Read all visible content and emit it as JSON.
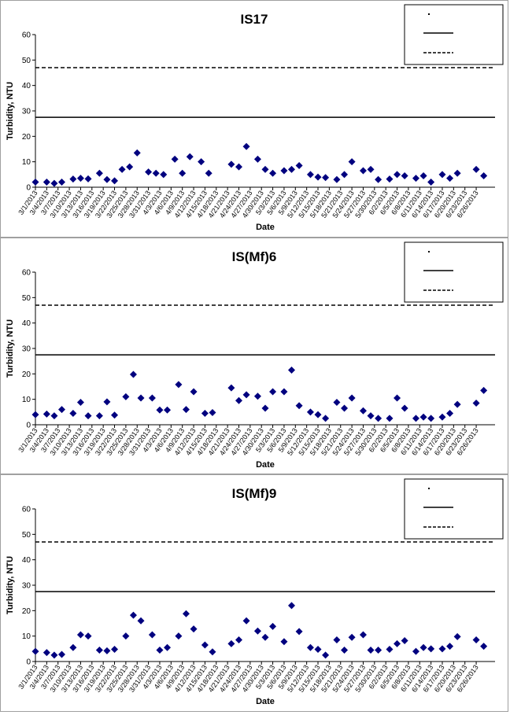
{
  "x_labels": [
    "3/1/2013",
    "3/4/2013",
    "3/7/2013",
    "3/10/2013",
    "3/13/2013",
    "3/16/2013",
    "3/19/2013",
    "3/22/2013",
    "3/25/2013",
    "3/28/2013",
    "3/31/2013",
    "4/3/2013",
    "4/6/2013",
    "4/9/2013",
    "4/12/2013",
    "4/15/2013",
    "4/18/2013",
    "4/21/2013",
    "4/24/2013",
    "4/27/2013",
    "4/30/2013",
    "5/3/2013",
    "5/6/2013",
    "5/9/2013",
    "5/12/2013",
    "5/15/2013",
    "5/18/2013",
    "5/21/2013",
    "5/24/2013",
    "5/27/2013",
    "5/30/2013",
    "6/2/2013",
    "6/5/2013",
    "6/8/2013",
    "6/11/2013",
    "6/14/2013",
    "6/17/2013",
    "6/20/2013",
    "6/23/2013",
    "6/26/2013"
  ],
  "colors": {
    "marker": "#00007f",
    "line": "#000000",
    "frame": "#a0a0a0"
  },
  "chart_data": [
    {
      "type": "scatter",
      "title": "IS17",
      "xlabel": "Date",
      "ylabel": "Turbidity, NTU",
      "ylim": [
        0,
        60
      ],
      "yticks": [
        0,
        10,
        20,
        30,
        40,
        50,
        60
      ],
      "xlim": [
        "3/1/2013",
        "7/1/2013"
      ],
      "legend": {
        "placement": "top-right"
      },
      "series": [
        {
          "marker": "diamond",
          "points": [
            [
              "3/1/2013",
              2.0
            ],
            [
              "3/4/2013",
              2.0
            ],
            [
              "3/6/2013",
              1.5
            ],
            [
              "3/8/2013",
              2.0
            ],
            [
              "3/11/2013",
              3.2
            ],
            [
              "3/13/2013",
              3.5
            ],
            [
              "3/15/2013",
              3.3
            ],
            [
              "3/18/2013",
              5.5
            ],
            [
              "3/20/2013",
              3.0
            ],
            [
              "3/22/2013",
              2.5
            ],
            [
              "3/24/2013",
              7.0
            ],
            [
              "3/26/2013",
              8.0
            ],
            [
              "3/28/2013",
              13.5
            ],
            [
              "3/31/2013",
              6.0
            ],
            [
              "4/2/2013",
              5.5
            ],
            [
              "4/4/2013",
              5.0
            ],
            [
              "4/7/2013",
              11.0
            ],
            [
              "4/9/2013",
              5.5
            ],
            [
              "4/11/2013",
              12.0
            ],
            [
              "4/14/2013",
              10.0
            ],
            [
              "4/16/2013",
              5.5
            ],
            [
              "4/22/2013",
              9.0
            ],
            [
              "4/24/2013",
              8.0
            ],
            [
              "4/26/2013",
              16.0
            ],
            [
              "4/29/2013",
              11.0
            ],
            [
              "5/1/2013",
              7.0
            ],
            [
              "5/3/2013",
              5.5
            ],
            [
              "5/6/2013",
              6.5
            ],
            [
              "5/8/2013",
              7.0
            ],
            [
              "5/10/2013",
              8.5
            ],
            [
              "5/13/2013",
              5.0
            ],
            [
              "5/15/2013",
              4.0
            ],
            [
              "5/17/2013",
              3.8
            ],
            [
              "5/20/2013",
              3.0
            ],
            [
              "5/22/2013",
              5.0
            ],
            [
              "5/24/2013",
              10.0
            ],
            [
              "5/27/2013",
              6.5
            ],
            [
              "5/29/2013",
              7.0
            ],
            [
              "5/31/2013",
              3.0
            ],
            [
              "6/3/2013",
              3.2
            ],
            [
              "6/5/2013",
              5.0
            ],
            [
              "6/7/2013",
              4.5
            ],
            [
              "6/10/2013",
              3.5
            ],
            [
              "6/12/2013",
              4.5
            ],
            [
              "6/14/2013",
              2.0
            ],
            [
              "6/17/2013",
              5.0
            ],
            [
              "6/19/2013",
              3.5
            ],
            [
              "6/21/2013",
              5.5
            ],
            [
              "6/26/2013",
              7.0
            ],
            [
              "6/28/2013",
              4.5
            ]
          ]
        }
      ],
      "reference_lines": [
        {
          "style": "solid",
          "y": 27.5
        },
        {
          "style": "dashed",
          "y": 47.0
        }
      ]
    },
    {
      "type": "scatter",
      "title": "IS(Mf)6",
      "xlabel": "Date",
      "ylabel": "Turbidity, NTU",
      "ylim": [
        0,
        60
      ],
      "yticks": [
        0,
        10,
        20,
        30,
        40,
        50,
        60
      ],
      "xlim": [
        "3/1/2013",
        "7/1/2013"
      ],
      "legend": {
        "placement": "top-right"
      },
      "series": [
        {
          "marker": "diamond",
          "points": [
            [
              "3/1/2013",
              4.0
            ],
            [
              "3/4/2013",
              4.2
            ],
            [
              "3/6/2013",
              3.5
            ],
            [
              "3/8/2013",
              6.0
            ],
            [
              "3/11/2013",
              4.5
            ],
            [
              "3/13/2013",
              8.8
            ],
            [
              "3/15/2013",
              3.5
            ],
            [
              "3/18/2013",
              3.5
            ],
            [
              "3/20/2013",
              9.0
            ],
            [
              "3/22/2013",
              3.8
            ],
            [
              "3/25/2013",
              11.0
            ],
            [
              "3/27/2013",
              19.8
            ],
            [
              "3/29/2013",
              10.5
            ],
            [
              "4/1/2013",
              10.5
            ],
            [
              "4/3/2013",
              5.8
            ],
            [
              "4/5/2013",
              5.8
            ],
            [
              "4/8/2013",
              15.8
            ],
            [
              "4/10/2013",
              6.0
            ],
            [
              "4/12/2013",
              13.0
            ],
            [
              "4/15/2013",
              4.5
            ],
            [
              "4/17/2013",
              4.8
            ],
            [
              "4/22/2013",
              14.5
            ],
            [
              "4/24/2013",
              9.5
            ],
            [
              "4/26/2013",
              11.8
            ],
            [
              "4/29/2013",
              11.2
            ],
            [
              "5/1/2013",
              6.5
            ],
            [
              "5/3/2013",
              13.0
            ],
            [
              "5/6/2013",
              13.0
            ],
            [
              "5/8/2013",
              21.5
            ],
            [
              "5/10/2013",
              7.5
            ],
            [
              "5/13/2013",
              5.0
            ],
            [
              "5/15/2013",
              4.0
            ],
            [
              "5/17/2013",
              2.5
            ],
            [
              "5/20/2013",
              8.8
            ],
            [
              "5/22/2013",
              6.5
            ],
            [
              "5/24/2013",
              10.5
            ],
            [
              "5/27/2013",
              5.5
            ],
            [
              "5/29/2013",
              3.5
            ],
            [
              "5/31/2013",
              2.5
            ],
            [
              "6/3/2013",
              2.5
            ],
            [
              "6/5/2013",
              10.5
            ],
            [
              "6/7/2013",
              6.5
            ],
            [
              "6/10/2013",
              2.5
            ],
            [
              "6/12/2013",
              3.0
            ],
            [
              "6/14/2013",
              2.5
            ],
            [
              "6/17/2013",
              3.0
            ],
            [
              "6/19/2013",
              4.5
            ],
            [
              "6/21/2013",
              8.0
            ],
            [
              "6/26/2013",
              8.5
            ],
            [
              "6/28/2013",
              13.5
            ]
          ]
        }
      ],
      "reference_lines": [
        {
          "style": "solid",
          "y": 27.5
        },
        {
          "style": "dashed",
          "y": 47.0
        }
      ]
    },
    {
      "type": "scatter",
      "title": "IS(Mf)9",
      "xlabel": "Date",
      "ylabel": "Turbidity, NTU",
      "ylim": [
        0,
        60
      ],
      "yticks": [
        0,
        10,
        20,
        30,
        40,
        50,
        60
      ],
      "xlim": [
        "3/1/2013",
        "7/1/2013"
      ],
      "legend": {
        "placement": "top-right"
      },
      "series": [
        {
          "marker": "diamond",
          "points": [
            [
              "3/1/2013",
              4.0
            ],
            [
              "3/4/2013",
              3.5
            ],
            [
              "3/6/2013",
              2.5
            ],
            [
              "3/8/2013",
              2.8
            ],
            [
              "3/11/2013",
              5.5
            ],
            [
              "3/13/2013",
              10.5
            ],
            [
              "3/15/2013",
              10.0
            ],
            [
              "3/18/2013",
              4.5
            ],
            [
              "3/20/2013",
              4.2
            ],
            [
              "3/22/2013",
              4.8
            ],
            [
              "3/25/2013",
              10.0
            ],
            [
              "3/27/2013",
              18.2
            ],
            [
              "3/29/2013",
              16.0
            ],
            [
              "4/1/2013",
              10.5
            ],
            [
              "4/3/2013",
              4.5
            ],
            [
              "4/5/2013",
              5.5
            ],
            [
              "4/8/2013",
              10.0
            ],
            [
              "4/10/2013",
              18.8
            ],
            [
              "4/12/2013",
              12.8
            ],
            [
              "4/15/2013",
              6.5
            ],
            [
              "4/17/2013",
              3.8
            ],
            [
              "4/22/2013",
              7.0
            ],
            [
              "4/24/2013",
              8.5
            ],
            [
              "4/26/2013",
              16.0
            ],
            [
              "4/29/2013",
              12.0
            ],
            [
              "5/1/2013",
              9.5
            ],
            [
              "5/3/2013",
              13.8
            ],
            [
              "5/6/2013",
              7.8
            ],
            [
              "5/8/2013",
              22.0
            ],
            [
              "5/10/2013",
              11.8
            ],
            [
              "5/13/2013",
              5.5
            ],
            [
              "5/15/2013",
              4.8
            ],
            [
              "5/17/2013",
              2.5
            ],
            [
              "5/20/2013",
              8.5
            ],
            [
              "5/22/2013",
              4.5
            ],
            [
              "5/24/2013",
              9.5
            ],
            [
              "5/27/2013",
              10.5
            ],
            [
              "5/29/2013",
              4.5
            ],
            [
              "5/31/2013",
              4.5
            ],
            [
              "6/3/2013",
              4.8
            ],
            [
              "6/5/2013",
              7.0
            ],
            [
              "6/7/2013",
              8.2
            ],
            [
              "6/10/2013",
              4.0
            ],
            [
              "6/12/2013",
              5.5
            ],
            [
              "6/14/2013",
              5.0
            ],
            [
              "6/17/2013",
              5.0
            ],
            [
              "6/19/2013",
              6.0
            ],
            [
              "6/21/2013",
              9.8
            ],
            [
              "6/26/2013",
              8.5
            ],
            [
              "6/28/2013",
              6.0
            ]
          ]
        }
      ],
      "reference_lines": [
        {
          "style": "solid",
          "y": 27.5
        },
        {
          "style": "dashed",
          "y": 47.0
        }
      ]
    }
  ]
}
